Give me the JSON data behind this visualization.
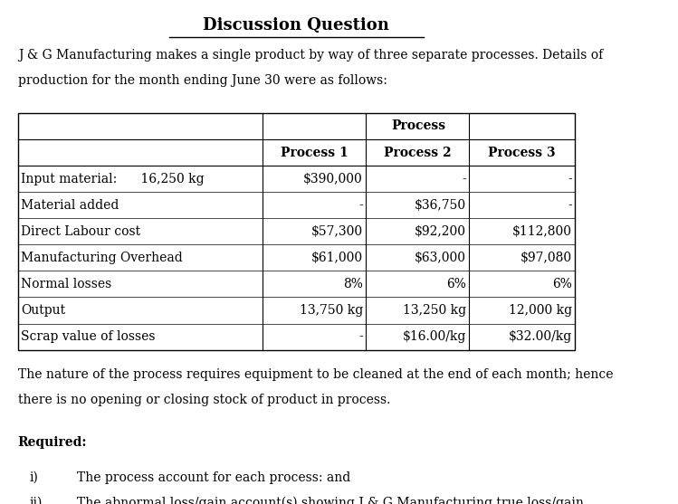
{
  "title": "Discussion Question",
  "intro_text": "J & G Manufacturing makes a single product by way of three separate processes. Details of\nproduction for the month ending June 30 were as follows:",
  "table_header_top": "Process",
  "table_col_headers": [
    "",
    "Process 1",
    "Process 2",
    "Process 3"
  ],
  "table_rows": [
    [
      "Input material:      16,250 kg",
      "$390,000",
      "-",
      "-"
    ],
    [
      "Material added",
      "-",
      "$36,750",
      "-"
    ],
    [
      "Direct Labour cost",
      "$57,300",
      "$92,200",
      "$112,800"
    ],
    [
      "Manufacturing Overhead",
      "$61,000",
      "$63,000",
      "$97,080"
    ],
    [
      "Normal losses",
      "8%",
      "6%",
      "6%"
    ],
    [
      "Output",
      "13,750 kg",
      "13,250 kg",
      "12,000 kg"
    ],
    [
      "Scrap value of losses",
      "-",
      "$16.00/kg",
      "$32.00/kg"
    ]
  ],
  "footer_text": "The nature of the process requires equipment to be cleaned at the end of each month; hence\nthere is no opening or closing stock of product in process.",
  "required_label": "Required:",
  "required_items": [
    [
      "i)",
      "The process account for each process: and"
    ],
    [
      "ii)",
      "The abnormal loss/gain account(s) showing J & G Manufacturing true loss/gain."
    ]
  ],
  "bg_color": "#ffffff",
  "text_color": "#000000",
  "font_family": "DejaVu Serif",
  "title_fontsize": 13,
  "body_fontsize": 10,
  "table_fontsize": 10
}
